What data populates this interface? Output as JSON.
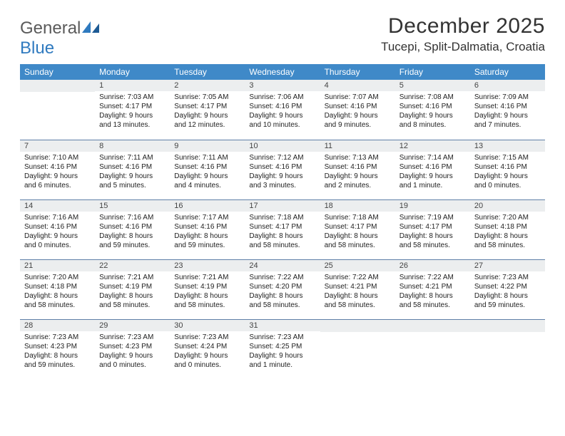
{
  "logo": {
    "word1": "General",
    "word2": "Blue"
  },
  "title": {
    "month": "December 2025",
    "location": "Tucepi, Split-Dalmatia, Croatia"
  },
  "colors": {
    "header_bg": "#3f89c8",
    "daynum_bg": "#eceeef",
    "border": "#5f7fa8",
    "logo_gray": "#5a5a5a",
    "logo_blue": "#2f7abf"
  },
  "days_of_week": [
    "Sunday",
    "Monday",
    "Tuesday",
    "Wednesday",
    "Thursday",
    "Friday",
    "Saturday"
  ],
  "weeks": [
    [
      {
        "n": "",
        "lines": []
      },
      {
        "n": "1",
        "lines": [
          "Sunrise: 7:03 AM",
          "Sunset: 4:17 PM",
          "Daylight: 9 hours and 13 minutes."
        ]
      },
      {
        "n": "2",
        "lines": [
          "Sunrise: 7:05 AM",
          "Sunset: 4:17 PM",
          "Daylight: 9 hours and 12 minutes."
        ]
      },
      {
        "n": "3",
        "lines": [
          "Sunrise: 7:06 AM",
          "Sunset: 4:16 PM",
          "Daylight: 9 hours and 10 minutes."
        ]
      },
      {
        "n": "4",
        "lines": [
          "Sunrise: 7:07 AM",
          "Sunset: 4:16 PM",
          "Daylight: 9 hours and 9 minutes."
        ]
      },
      {
        "n": "5",
        "lines": [
          "Sunrise: 7:08 AM",
          "Sunset: 4:16 PM",
          "Daylight: 9 hours and 8 minutes."
        ]
      },
      {
        "n": "6",
        "lines": [
          "Sunrise: 7:09 AM",
          "Sunset: 4:16 PM",
          "Daylight: 9 hours and 7 minutes."
        ]
      }
    ],
    [
      {
        "n": "7",
        "lines": [
          "Sunrise: 7:10 AM",
          "Sunset: 4:16 PM",
          "Daylight: 9 hours and 6 minutes."
        ]
      },
      {
        "n": "8",
        "lines": [
          "Sunrise: 7:11 AM",
          "Sunset: 4:16 PM",
          "Daylight: 9 hours and 5 minutes."
        ]
      },
      {
        "n": "9",
        "lines": [
          "Sunrise: 7:11 AM",
          "Sunset: 4:16 PM",
          "Daylight: 9 hours and 4 minutes."
        ]
      },
      {
        "n": "10",
        "lines": [
          "Sunrise: 7:12 AM",
          "Sunset: 4:16 PM",
          "Daylight: 9 hours and 3 minutes."
        ]
      },
      {
        "n": "11",
        "lines": [
          "Sunrise: 7:13 AM",
          "Sunset: 4:16 PM",
          "Daylight: 9 hours and 2 minutes."
        ]
      },
      {
        "n": "12",
        "lines": [
          "Sunrise: 7:14 AM",
          "Sunset: 4:16 PM",
          "Daylight: 9 hours and 1 minute."
        ]
      },
      {
        "n": "13",
        "lines": [
          "Sunrise: 7:15 AM",
          "Sunset: 4:16 PM",
          "Daylight: 9 hours and 0 minutes."
        ]
      }
    ],
    [
      {
        "n": "14",
        "lines": [
          "Sunrise: 7:16 AM",
          "Sunset: 4:16 PM",
          "Daylight: 9 hours and 0 minutes."
        ]
      },
      {
        "n": "15",
        "lines": [
          "Sunrise: 7:16 AM",
          "Sunset: 4:16 PM",
          "Daylight: 8 hours and 59 minutes."
        ]
      },
      {
        "n": "16",
        "lines": [
          "Sunrise: 7:17 AM",
          "Sunset: 4:16 PM",
          "Daylight: 8 hours and 59 minutes."
        ]
      },
      {
        "n": "17",
        "lines": [
          "Sunrise: 7:18 AM",
          "Sunset: 4:17 PM",
          "Daylight: 8 hours and 58 minutes."
        ]
      },
      {
        "n": "18",
        "lines": [
          "Sunrise: 7:18 AM",
          "Sunset: 4:17 PM",
          "Daylight: 8 hours and 58 minutes."
        ]
      },
      {
        "n": "19",
        "lines": [
          "Sunrise: 7:19 AM",
          "Sunset: 4:17 PM",
          "Daylight: 8 hours and 58 minutes."
        ]
      },
      {
        "n": "20",
        "lines": [
          "Sunrise: 7:20 AM",
          "Sunset: 4:18 PM",
          "Daylight: 8 hours and 58 minutes."
        ]
      }
    ],
    [
      {
        "n": "21",
        "lines": [
          "Sunrise: 7:20 AM",
          "Sunset: 4:18 PM",
          "Daylight: 8 hours and 58 minutes."
        ]
      },
      {
        "n": "22",
        "lines": [
          "Sunrise: 7:21 AM",
          "Sunset: 4:19 PM",
          "Daylight: 8 hours and 58 minutes."
        ]
      },
      {
        "n": "23",
        "lines": [
          "Sunrise: 7:21 AM",
          "Sunset: 4:19 PM",
          "Daylight: 8 hours and 58 minutes."
        ]
      },
      {
        "n": "24",
        "lines": [
          "Sunrise: 7:22 AM",
          "Sunset: 4:20 PM",
          "Daylight: 8 hours and 58 minutes."
        ]
      },
      {
        "n": "25",
        "lines": [
          "Sunrise: 7:22 AM",
          "Sunset: 4:21 PM",
          "Daylight: 8 hours and 58 minutes."
        ]
      },
      {
        "n": "26",
        "lines": [
          "Sunrise: 7:22 AM",
          "Sunset: 4:21 PM",
          "Daylight: 8 hours and 58 minutes."
        ]
      },
      {
        "n": "27",
        "lines": [
          "Sunrise: 7:23 AM",
          "Sunset: 4:22 PM",
          "Daylight: 8 hours and 59 minutes."
        ]
      }
    ],
    [
      {
        "n": "28",
        "lines": [
          "Sunrise: 7:23 AM",
          "Sunset: 4:23 PM",
          "Daylight: 8 hours and 59 minutes."
        ]
      },
      {
        "n": "29",
        "lines": [
          "Sunrise: 7:23 AM",
          "Sunset: 4:23 PM",
          "Daylight: 9 hours and 0 minutes."
        ]
      },
      {
        "n": "30",
        "lines": [
          "Sunrise: 7:23 AM",
          "Sunset: 4:24 PM",
          "Daylight: 9 hours and 0 minutes."
        ]
      },
      {
        "n": "31",
        "lines": [
          "Sunrise: 7:23 AM",
          "Sunset: 4:25 PM",
          "Daylight: 9 hours and 1 minute."
        ]
      },
      {
        "n": "",
        "lines": []
      },
      {
        "n": "",
        "lines": []
      },
      {
        "n": "",
        "lines": []
      }
    ]
  ]
}
